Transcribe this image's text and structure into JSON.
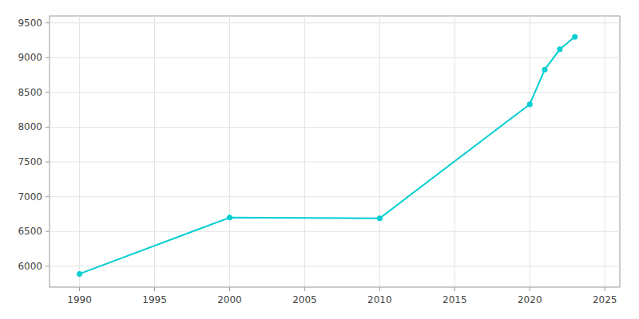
{
  "chart_data": {
    "type": "line",
    "x": [
      1990,
      2000,
      2010,
      2020,
      2021,
      2022,
      2023
    ],
    "values": [
      5890,
      6700,
      6690,
      8330,
      8830,
      9120,
      9300
    ],
    "color": "#00CED1",
    "marker": "circle",
    "xlim": [
      1988,
      2026
    ],
    "ylim": [
      5700,
      9600
    ],
    "xticks": [
      1990,
      1995,
      2000,
      2005,
      2010,
      2015,
      2020,
      2025
    ],
    "yticks": [
      6000,
      6500,
      7000,
      7500,
      8000,
      8500,
      9000,
      9500
    ],
    "grid": true
  }
}
